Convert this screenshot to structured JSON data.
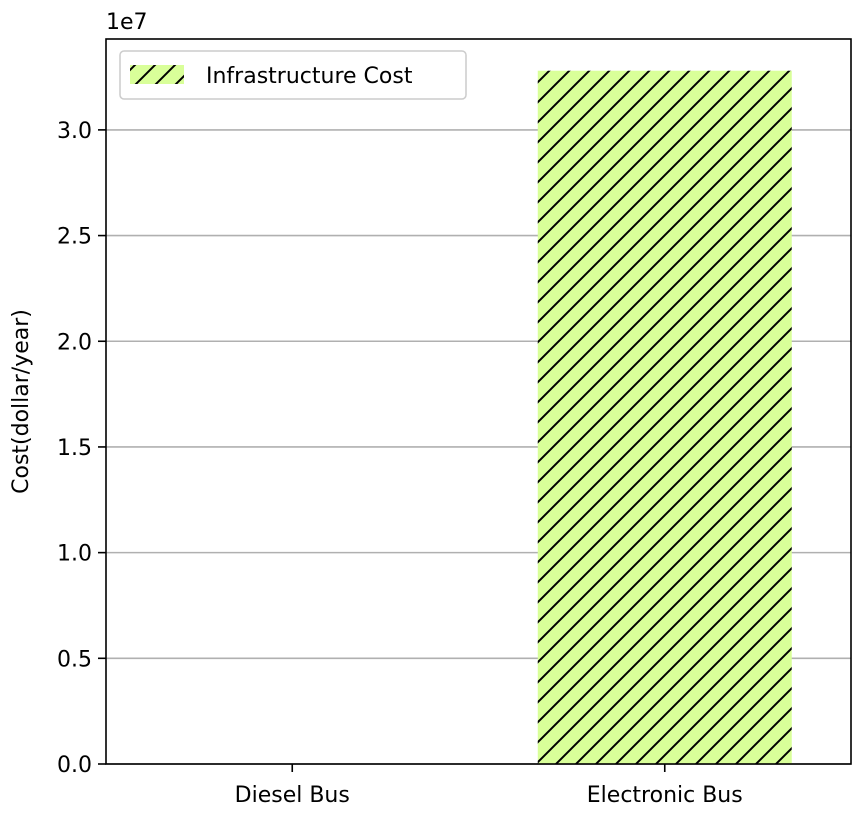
{
  "chart_data": {
    "type": "bar",
    "categories": [
      "Diesel Bus",
      "Electronic Bus"
    ],
    "series": [
      {
        "name": "Infrastructure Cost",
        "values": [
          0,
          32800000
        ],
        "color": "#d9ff99",
        "hatch": "diagonal"
      }
    ],
    "ylabel": "Cost(dollar/year)",
    "xlabel": "",
    "title": "",
    "y_scale_label": "1e7",
    "ylim": [
      0,
      34300000
    ],
    "yticks": [
      0,
      5000000,
      10000000,
      15000000,
      20000000,
      25000000,
      30000000
    ],
    "ytick_labels": [
      "0.0",
      "0.5",
      "1.0",
      "1.5",
      "2.0",
      "2.5",
      "3.0"
    ],
    "grid": "horizontal",
    "grid_color": "#b0b0b0",
    "legend_position": "top-left"
  }
}
